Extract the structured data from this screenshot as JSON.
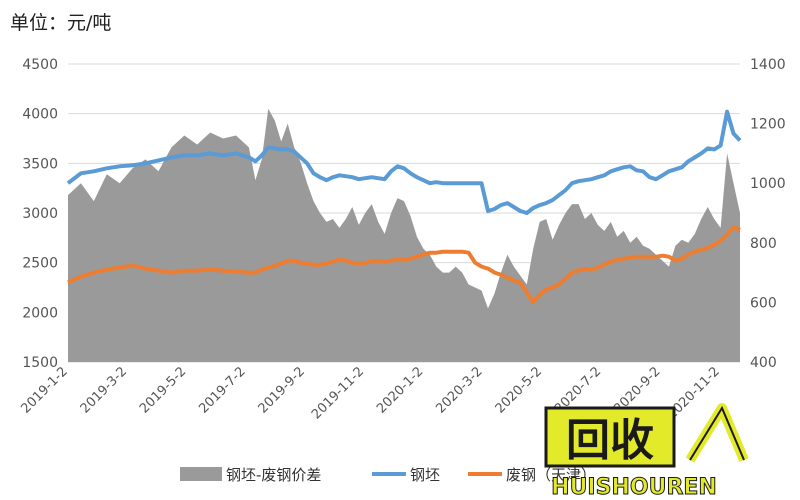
{
  "unit_label": "单位：元/吨",
  "watermark": {
    "text_main": "回收",
    "text_sub": "HUISHOUREN",
    "colors": {
      "box": "#e3ea2a",
      "stroke": "#1a1a1a"
    }
  },
  "chart_data": {
    "type": "line+area",
    "left_axis": {
      "range": [
        1500,
        4500
      ],
      "ticks": [
        "4500",
        "4000",
        "3500",
        "3000",
        "2500",
        "2000",
        "1500"
      ]
    },
    "right_axis": {
      "range": [
        400,
        1400
      ],
      "ticks": [
        "1400",
        "1200",
        "1000",
        "800",
        "600",
        "400"
      ]
    },
    "x_ticks": [
      "2019-1-2",
      "2019-3-2",
      "2019-5-2",
      "2019-7-2",
      "2019-9-2",
      "2019-11-2",
      "2020-1-2",
      "2020-3-2",
      "2020-5-2",
      "2020-7-2",
      "2020-9-2",
      "2020-11-2"
    ],
    "legend_position": "bottom",
    "series": [
      {
        "name": "钢坯-废钢价差",
        "axis": "right",
        "type": "area",
        "color": "#9a9a9a",
        "values": [
          [
            0,
            960
          ],
          [
            2,
            1000
          ],
          [
            4,
            940
          ],
          [
            6,
            1030
          ],
          [
            8,
            1000
          ],
          [
            10,
            1050
          ],
          [
            12,
            1080
          ],
          [
            14,
            1040
          ],
          [
            16,
            1120
          ],
          [
            18,
            1160
          ],
          [
            20,
            1130
          ],
          [
            22,
            1170
          ],
          [
            24,
            1150
          ],
          [
            26,
            1160
          ],
          [
            28,
            1120
          ],
          [
            29,
            1010
          ],
          [
            30,
            1080
          ],
          [
            31,
            1250
          ],
          [
            32,
            1210
          ],
          [
            33,
            1140
          ],
          [
            34,
            1200
          ],
          [
            35,
            1120
          ],
          [
            36,
            1070
          ],
          [
            37,
            1000
          ],
          [
            38,
            940
          ],
          [
            39,
            900
          ],
          [
            40,
            870
          ],
          [
            41,
            880
          ],
          [
            42,
            850
          ],
          [
            43,
            880
          ],
          [
            44,
            920
          ],
          [
            45,
            860
          ],
          [
            46,
            900
          ],
          [
            47,
            930
          ],
          [
            48,
            870
          ],
          [
            49,
            830
          ],
          [
            50,
            900
          ],
          [
            51,
            950
          ],
          [
            52,
            940
          ],
          [
            53,
            890
          ],
          [
            54,
            820
          ],
          [
            55,
            780
          ],
          [
            56,
            760
          ],
          [
            57,
            720
          ],
          [
            58,
            700
          ],
          [
            59,
            700
          ],
          [
            60,
            720
          ],
          [
            61,
            700
          ],
          [
            62,
            660
          ],
          [
            63,
            650
          ],
          [
            64,
            640
          ],
          [
            65,
            580
          ],
          [
            66,
            630
          ],
          [
            67,
            700
          ],
          [
            68,
            760
          ],
          [
            69,
            720
          ],
          [
            70,
            690
          ],
          [
            71,
            660
          ],
          [
            72,
            780
          ],
          [
            73,
            870
          ],
          [
            74,
            880
          ],
          [
            75,
            810
          ],
          [
            76,
            860
          ],
          [
            77,
            900
          ],
          [
            78,
            930
          ],
          [
            79,
            930
          ],
          [
            80,
            880
          ],
          [
            81,
            900
          ],
          [
            82,
            860
          ],
          [
            83,
            840
          ],
          [
            84,
            870
          ],
          [
            85,
            820
          ],
          [
            86,
            840
          ],
          [
            87,
            800
          ],
          [
            88,
            820
          ],
          [
            89,
            790
          ],
          [
            90,
            780
          ],
          [
            91,
            760
          ],
          [
            92,
            740
          ],
          [
            93,
            720
          ],
          [
            94,
            790
          ],
          [
            95,
            810
          ],
          [
            96,
            800
          ],
          [
            97,
            830
          ],
          [
            98,
            880
          ],
          [
            99,
            920
          ],
          [
            100,
            880
          ],
          [
            101,
            850
          ],
          [
            102,
            1100
          ],
          [
            103,
            1000
          ],
          [
            104,
            900
          ]
        ]
      },
      {
        "name": "钢坯",
        "axis": "left",
        "type": "line",
        "color": "#5b9bd5",
        "values": [
          [
            0,
            3300
          ],
          [
            2,
            3400
          ],
          [
            4,
            3420
          ],
          [
            6,
            3450
          ],
          [
            8,
            3470
          ],
          [
            10,
            3480
          ],
          [
            12,
            3500
          ],
          [
            14,
            3530
          ],
          [
            16,
            3560
          ],
          [
            18,
            3580
          ],
          [
            20,
            3580
          ],
          [
            22,
            3600
          ],
          [
            24,
            3580
          ],
          [
            26,
            3600
          ],
          [
            28,
            3560
          ],
          [
            29,
            3520
          ],
          [
            30,
            3580
          ],
          [
            31,
            3660
          ],
          [
            32,
            3650
          ],
          [
            33,
            3640
          ],
          [
            34,
            3640
          ],
          [
            35,
            3620
          ],
          [
            36,
            3560
          ],
          [
            37,
            3500
          ],
          [
            38,
            3400
          ],
          [
            39,
            3360
          ],
          [
            40,
            3330
          ],
          [
            41,
            3360
          ],
          [
            42,
            3380
          ],
          [
            43,
            3370
          ],
          [
            44,
            3360
          ],
          [
            45,
            3340
          ],
          [
            46,
            3350
          ],
          [
            47,
            3360
          ],
          [
            48,
            3350
          ],
          [
            49,
            3340
          ],
          [
            50,
            3420
          ],
          [
            51,
            3470
          ],
          [
            52,
            3450
          ],
          [
            53,
            3400
          ],
          [
            54,
            3360
          ],
          [
            55,
            3330
          ],
          [
            56,
            3300
          ],
          [
            57,
            3310
          ],
          [
            58,
            3300
          ],
          [
            59,
            3300
          ],
          [
            60,
            3300
          ],
          [
            61,
            3300
          ],
          [
            62,
            3300
          ],
          [
            63,
            3300
          ],
          [
            64,
            3300
          ],
          [
            65,
            3020
          ],
          [
            66,
            3040
          ],
          [
            67,
            3080
          ],
          [
            68,
            3100
          ],
          [
            69,
            3060
          ],
          [
            70,
            3020
          ],
          [
            71,
            3000
          ],
          [
            72,
            3050
          ],
          [
            73,
            3080
          ],
          [
            74,
            3100
          ],
          [
            75,
            3130
          ],
          [
            76,
            3180
          ],
          [
            77,
            3230
          ],
          [
            78,
            3300
          ],
          [
            79,
            3320
          ],
          [
            80,
            3330
          ],
          [
            81,
            3340
          ],
          [
            82,
            3360
          ],
          [
            83,
            3380
          ],
          [
            84,
            3420
          ],
          [
            85,
            3440
          ],
          [
            86,
            3460
          ],
          [
            87,
            3470
          ],
          [
            88,
            3430
          ],
          [
            89,
            3420
          ],
          [
            90,
            3360
          ],
          [
            91,
            3340
          ],
          [
            92,
            3380
          ],
          [
            93,
            3420
          ],
          [
            94,
            3440
          ],
          [
            95,
            3460
          ],
          [
            96,
            3520
          ],
          [
            97,
            3560
          ],
          [
            98,
            3600
          ],
          [
            99,
            3650
          ],
          [
            100,
            3640
          ],
          [
            101,
            3680
          ],
          [
            102,
            4020
          ],
          [
            103,
            3800
          ],
          [
            104,
            3730
          ]
        ]
      },
      {
        "name": "废钢（天津）",
        "axis": "left",
        "type": "line",
        "color": "#ed7d31",
        "values": [
          [
            0,
            2300
          ],
          [
            2,
            2360
          ],
          [
            4,
            2400
          ],
          [
            6,
            2430
          ],
          [
            8,
            2450
          ],
          [
            10,
            2470
          ],
          [
            12,
            2440
          ],
          [
            14,
            2420
          ],
          [
            16,
            2400
          ],
          [
            18,
            2420
          ],
          [
            20,
            2420
          ],
          [
            22,
            2430
          ],
          [
            24,
            2420
          ],
          [
            26,
            2410
          ],
          [
            28,
            2400
          ],
          [
            29,
            2400
          ],
          [
            30,
            2430
          ],
          [
            31,
            2450
          ],
          [
            32,
            2470
          ],
          [
            33,
            2490
          ],
          [
            34,
            2520
          ],
          [
            35,
            2520
          ],
          [
            36,
            2500
          ],
          [
            37,
            2490
          ],
          [
            38,
            2480
          ],
          [
            39,
            2480
          ],
          [
            40,
            2490
          ],
          [
            41,
            2510
          ],
          [
            42,
            2530
          ],
          [
            43,
            2520
          ],
          [
            44,
            2500
          ],
          [
            45,
            2490
          ],
          [
            46,
            2500
          ],
          [
            47,
            2510
          ],
          [
            48,
            2520
          ],
          [
            49,
            2510
          ],
          [
            50,
            2520
          ],
          [
            51,
            2530
          ],
          [
            52,
            2530
          ],
          [
            53,
            2540
          ],
          [
            54,
            2560
          ],
          [
            55,
            2580
          ],
          [
            56,
            2600
          ],
          [
            57,
            2600
          ],
          [
            58,
            2610
          ],
          [
            59,
            2610
          ],
          [
            60,
            2610
          ],
          [
            61,
            2610
          ],
          [
            62,
            2600
          ],
          [
            63,
            2500
          ],
          [
            64,
            2460
          ],
          [
            65,
            2440
          ],
          [
            66,
            2400
          ],
          [
            67,
            2380
          ],
          [
            68,
            2350
          ],
          [
            69,
            2320
          ],
          [
            70,
            2300
          ],
          [
            71,
            2200
          ],
          [
            72,
            2100
          ],
          [
            73,
            2180
          ],
          [
            74,
            2230
          ],
          [
            75,
            2250
          ],
          [
            76,
            2280
          ],
          [
            77,
            2340
          ],
          [
            78,
            2400
          ],
          [
            79,
            2420
          ],
          [
            80,
            2440
          ],
          [
            81,
            2430
          ],
          [
            82,
            2450
          ],
          [
            83,
            2480
          ],
          [
            84,
            2510
          ],
          [
            85,
            2530
          ],
          [
            86,
            2540
          ],
          [
            87,
            2550
          ],
          [
            88,
            2560
          ],
          [
            89,
            2560
          ],
          [
            90,
            2560
          ],
          [
            91,
            2560
          ],
          [
            92,
            2570
          ],
          [
            93,
            2560
          ],
          [
            94,
            2520
          ],
          [
            95,
            2540
          ],
          [
            96,
            2580
          ],
          [
            97,
            2610
          ],
          [
            98,
            2630
          ],
          [
            99,
            2650
          ],
          [
            100,
            2680
          ],
          [
            101,
            2720
          ],
          [
            102,
            2780
          ],
          [
            103,
            2860
          ],
          [
            104,
            2830
          ]
        ]
      }
    ]
  }
}
